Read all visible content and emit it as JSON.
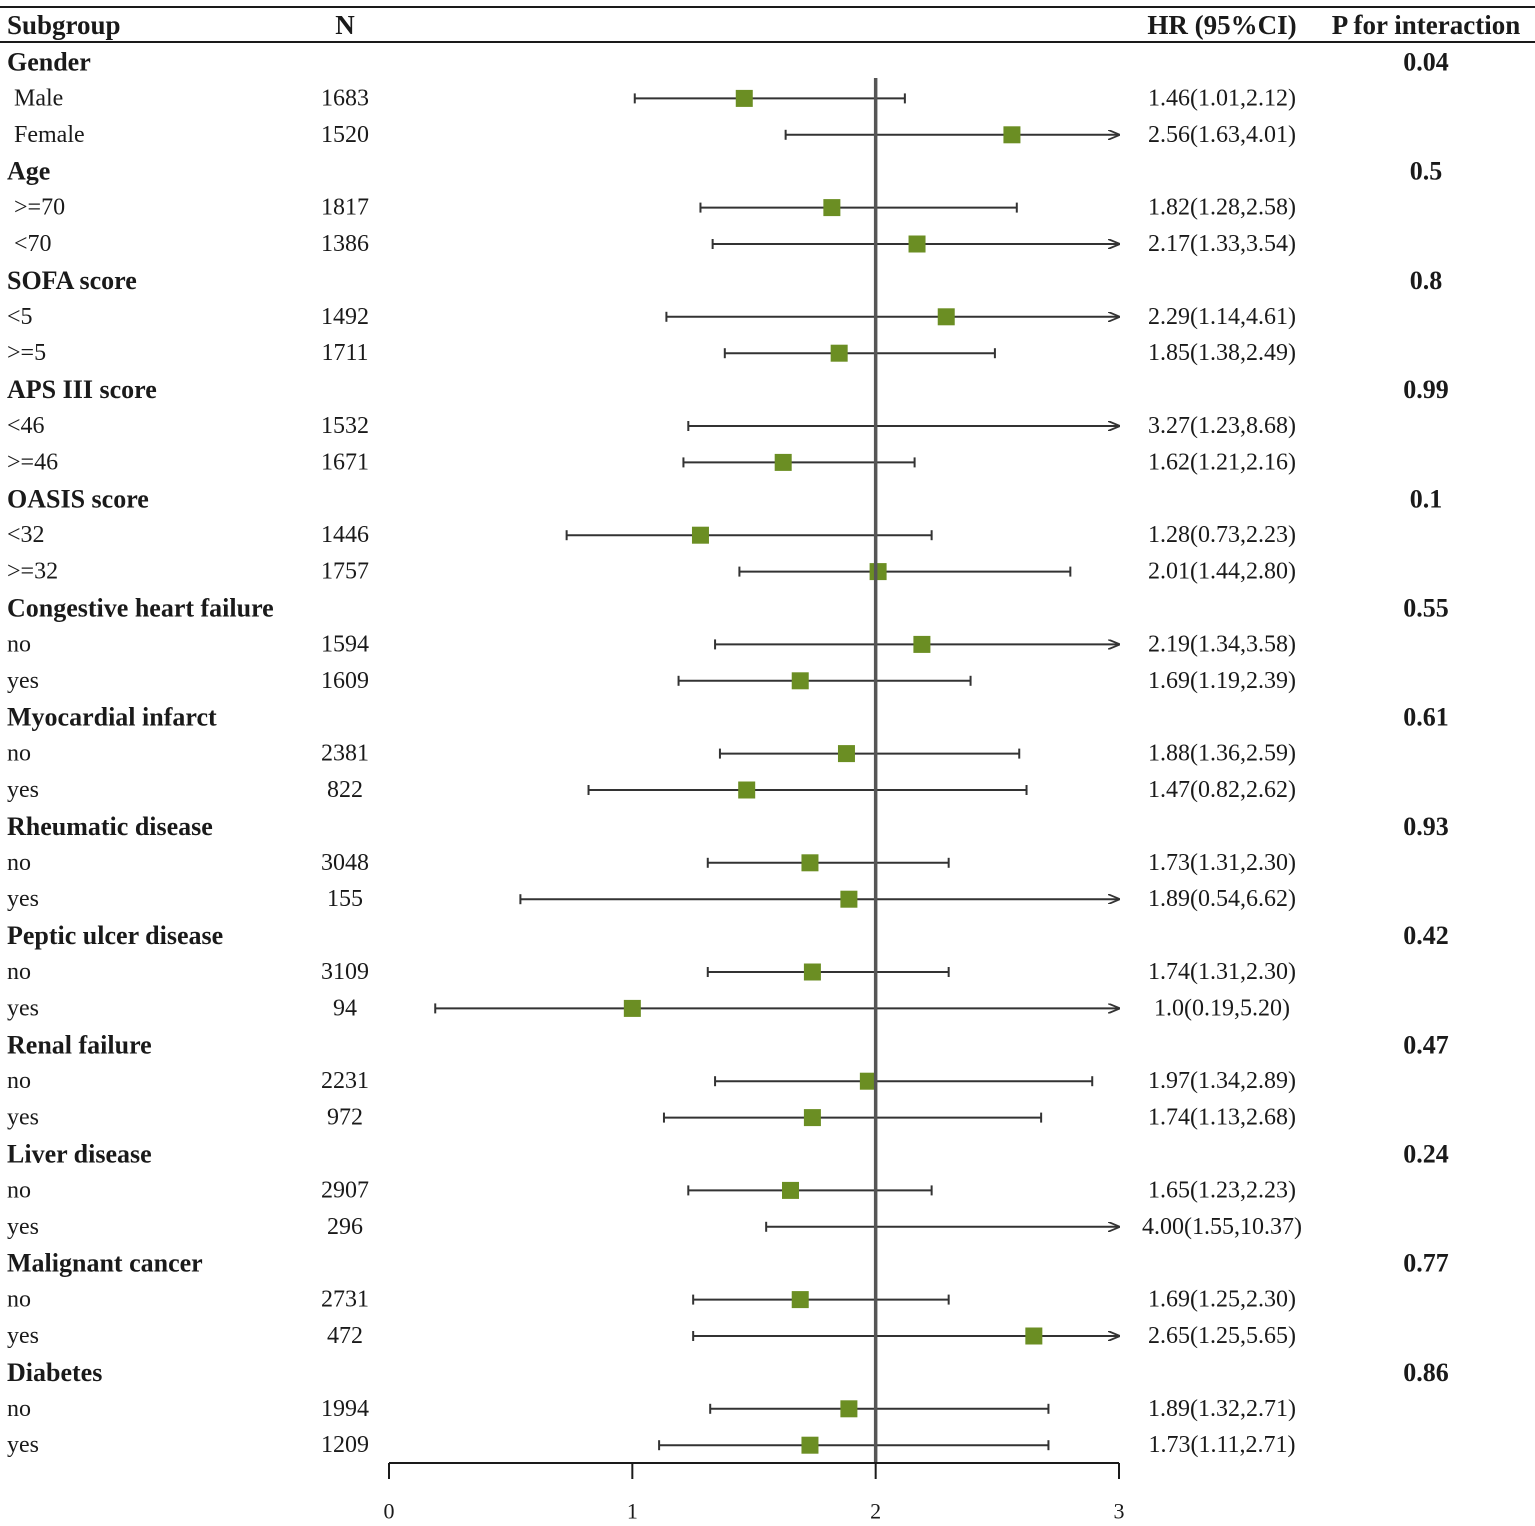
{
  "colors": {
    "marker": "#6b8e23",
    "line": "#333333",
    "refline": "#555555",
    "text": "#1a1a1a"
  },
  "headers": {
    "subgroup": "Subgroup",
    "n": "N",
    "hr": "HR (95%CI)",
    "p": "P for interaction"
  },
  "chart_data": {
    "type": "forest",
    "title": "",
    "xlabel": "",
    "ylabel": "",
    "xlim": [
      0,
      3
    ],
    "x_ticks": [
      0,
      1,
      2,
      3
    ],
    "reference_line": 2,
    "groups": [
      {
        "name": "Gender",
        "p": "0.04",
        "rows": [
          {
            "label": "Male",
            "n": "1683",
            "hr": 1.46,
            "lo": 1.01,
            "hi": 2.12,
            "text": "1.46(1.01,2.12)"
          },
          {
            "label": "Female",
            "n": "1520",
            "hr": 2.56,
            "lo": 1.63,
            "hi": 4.01,
            "text": "2.56(1.63,4.01)"
          }
        ]
      },
      {
        "name": "Age",
        "p": "0.5",
        "rows": [
          {
            "label": ">=70",
            "n": "1817",
            "hr": 1.82,
            "lo": 1.28,
            "hi": 2.58,
            "text": "1.82(1.28,2.58)"
          },
          {
            "label": "<70",
            "n": "1386",
            "hr": 2.17,
            "lo": 1.33,
            "hi": 3.54,
            "text": "2.17(1.33,3.54)"
          }
        ]
      },
      {
        "name": "SOFA score",
        "p": "0.8",
        "rows": [
          {
            "label": "<5",
            "n": "1492",
            "hr": 2.29,
            "lo": 1.14,
            "hi": 4.61,
            "text": "2.29(1.14,4.61)"
          },
          {
            "label": ">=5",
            "n": "1711",
            "hr": 1.85,
            "lo": 1.38,
            "hi": 2.49,
            "text": "1.85(1.38,2.49)"
          }
        ]
      },
      {
        "name": "APS III score",
        "p": "0.99",
        "rows": [
          {
            "label": "<46",
            "n": "1532",
            "hr": 3.27,
            "lo": 1.23,
            "hi": 8.68,
            "text": "3.27(1.23,8.68)"
          },
          {
            "label": ">=46",
            "n": "1671",
            "hr": 1.62,
            "lo": 1.21,
            "hi": 2.16,
            "text": "1.62(1.21,2.16)"
          }
        ]
      },
      {
        "name": "OASIS score",
        "p": "0.1",
        "rows": [
          {
            "label": "<32",
            "n": "1446",
            "hr": 1.28,
            "lo": 0.73,
            "hi": 2.23,
            "text": "1.28(0.73,2.23)"
          },
          {
            "label": ">=32",
            "n": "1757",
            "hr": 2.01,
            "lo": 1.44,
            "hi": 2.8,
            "text": "2.01(1.44,2.80)"
          }
        ]
      },
      {
        "name": "Congestive heart failure",
        "p": "0.55",
        "rows": [
          {
            "label": "no",
            "n": "1594",
            "hr": 2.19,
            "lo": 1.34,
            "hi": 3.58,
            "text": "2.19(1.34,3.58)"
          },
          {
            "label": "yes",
            "n": "1609",
            "hr": 1.69,
            "lo": 1.19,
            "hi": 2.39,
            "text": "1.69(1.19,2.39)"
          }
        ]
      },
      {
        "name": "Myocardial infarct",
        "p": "0.61",
        "rows": [
          {
            "label": "no",
            "n": "2381",
            "hr": 1.88,
            "lo": 1.36,
            "hi": 2.59,
            "text": "1.88(1.36,2.59)"
          },
          {
            "label": "yes",
            "n": "822",
            "hr": 1.47,
            "lo": 0.82,
            "hi": 2.62,
            "text": "1.47(0.82,2.62)"
          }
        ]
      },
      {
        "name": "Rheumatic disease",
        "p": "0.93",
        "rows": [
          {
            "label": "no",
            "n": "3048",
            "hr": 1.73,
            "lo": 1.31,
            "hi": 2.3,
            "text": "1.73(1.31,2.30)"
          },
          {
            "label": "yes",
            "n": "155",
            "hr": 1.89,
            "lo": 0.54,
            "hi": 6.62,
            "text": "1.89(0.54,6.62)"
          }
        ]
      },
      {
        "name": "Peptic ulcer disease",
        "p": "0.42",
        "rows": [
          {
            "label": "no",
            "n": "3109",
            "hr": 1.74,
            "lo": 1.31,
            "hi": 2.3,
            "text": "1.74(1.31,2.30)"
          },
          {
            "label": "yes",
            "n": "94",
            "hr": 1.0,
            "lo": 0.19,
            "hi": 5.2,
            "text": "1.0(0.19,5.20)"
          }
        ]
      },
      {
        "name": "Renal failure",
        "p": "0.47",
        "rows": [
          {
            "label": "no",
            "n": "2231",
            "hr": 1.97,
            "lo": 1.34,
            "hi": 2.89,
            "text": "1.97(1.34,2.89)"
          },
          {
            "label": "yes",
            "n": "972",
            "hr": 1.74,
            "lo": 1.13,
            "hi": 2.68,
            "text": "1.74(1.13,2.68)"
          }
        ]
      },
      {
        "name": "Liver disease",
        "p": "0.24",
        "rows": [
          {
            "label": "no",
            "n": "2907",
            "hr": 1.65,
            "lo": 1.23,
            "hi": 2.23,
            "text": "1.65(1.23,2.23)"
          },
          {
            "label": "yes",
            "n": "296",
            "hr": 4.0,
            "lo": 1.55,
            "hi": 10.37,
            "text": "4.00(1.55,10.37)"
          }
        ]
      },
      {
        "name": "Malignant cancer",
        "p": "0.77",
        "rows": [
          {
            "label": "no",
            "n": "2731",
            "hr": 1.69,
            "lo": 1.25,
            "hi": 2.3,
            "text": "1.69(1.25,2.30)"
          },
          {
            "label": "yes",
            "n": "472",
            "hr": 2.65,
            "lo": 1.25,
            "hi": 5.65,
            "text": "2.65(1.25,5.65)"
          }
        ]
      },
      {
        "name": "Diabetes",
        "p": "0.86",
        "rows": [
          {
            "label": "no",
            "n": "1994",
            "hr": 1.89,
            "lo": 1.32,
            "hi": 2.71,
            "text": "1.89(1.32,2.71)"
          },
          {
            "label": "yes",
            "n": "1209",
            "hr": 1.73,
            "lo": 1.11,
            "hi": 2.71,
            "text": "1.73(1.11,2.71)"
          }
        ]
      }
    ]
  }
}
